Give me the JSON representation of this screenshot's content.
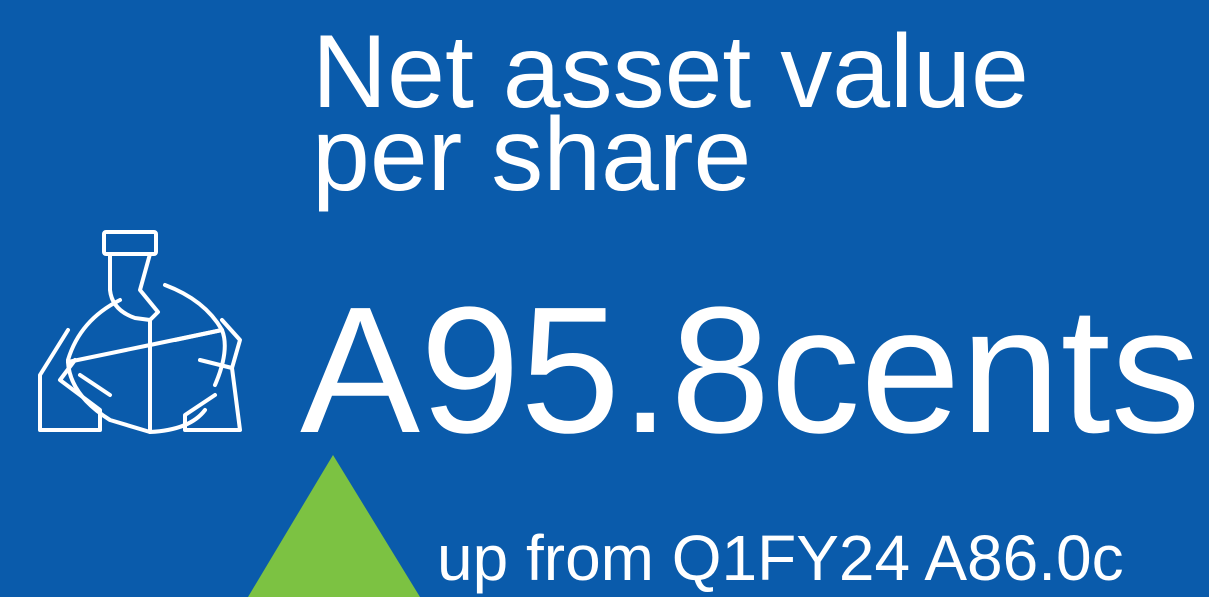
{
  "title_lines": [
    "Net asset value",
    "per share"
  ],
  "value": "A95.8cents",
  "change": "up from Q1FY24 A86.0c"
}
